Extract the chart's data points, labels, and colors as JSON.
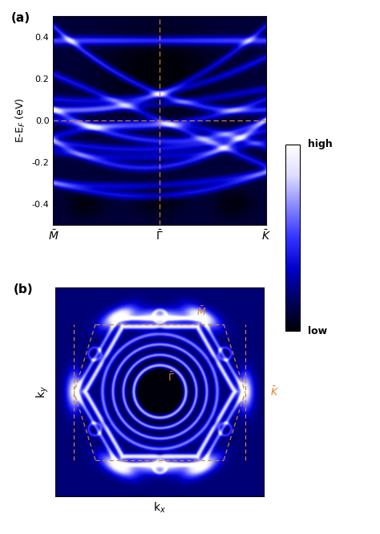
{
  "fig_width": 4.74,
  "fig_height": 6.65,
  "dpi": 100,
  "panel_a_label": "(a)",
  "panel_b_label": "(b)",
  "ylabel_a": "E-E$_F$ (eV)",
  "xlabel_b": "k$_x$",
  "ylabel_b": "k$_y$",
  "orange_color": "#d4822a",
  "ytick_vals_a": [
    -0.4,
    -0.2,
    0.0,
    0.2,
    0.4
  ],
  "colorbar_label_high": "high",
  "colorbar_label_low": "low"
}
